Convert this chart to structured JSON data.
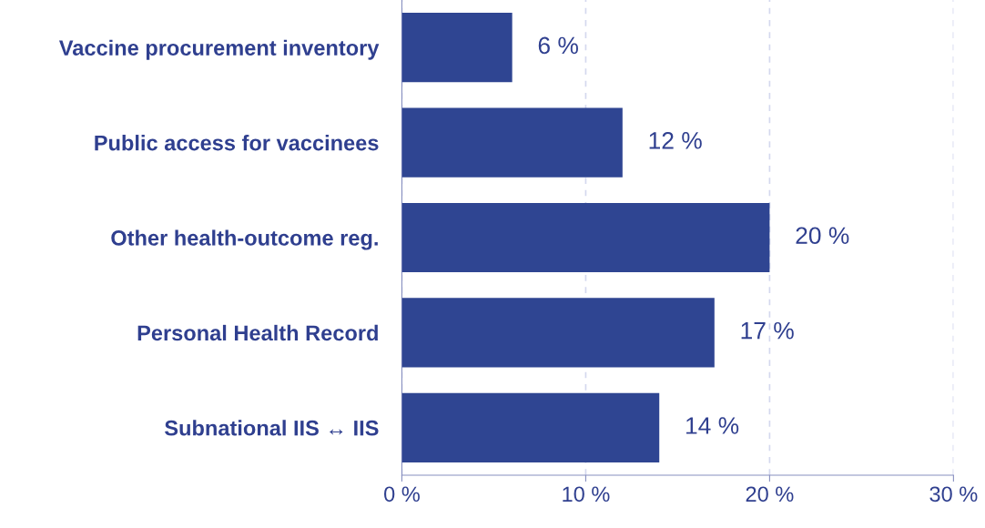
{
  "chart_data": {
    "type": "bar",
    "orientation": "horizontal",
    "categories": [
      "Vaccine procurement inventory",
      "Public access for vaccinees",
      "Other health-outcome reg.",
      "Personal Health Record",
      "Subnational IIS ↔ IIS"
    ],
    "values": [
      6,
      12,
      20,
      17,
      14
    ],
    "value_labels": [
      "6 %",
      "12 %",
      "20 %",
      "17 %",
      "14 %"
    ],
    "color": "#2f4592",
    "xlim": [
      0,
      30
    ],
    "xticks": [
      {
        "value": 0,
        "label": "0 %"
      },
      {
        "value": 10,
        "label": "10 %"
      },
      {
        "value": 20,
        "label": "20 %"
      },
      {
        "value": 30,
        "label": "30 %"
      }
    ],
    "grid": "x",
    "line_style": "dashed"
  }
}
